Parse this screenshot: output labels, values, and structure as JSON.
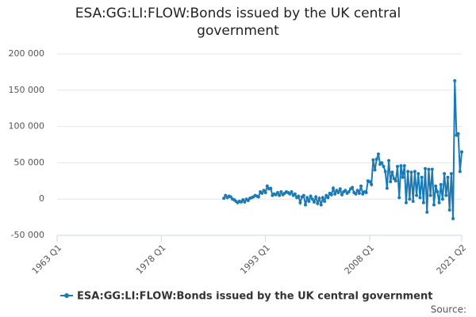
{
  "chart_data": {
    "type": "line",
    "title": "ESA:GG:LI:FLOW:Bonds issued by the UK central government",
    "source": "Source:",
    "x": [
      "1987 Q1",
      "1987 Q2",
      "1987 Q3",
      "1987 Q4",
      "1988 Q1",
      "1988 Q2",
      "1988 Q3",
      "1988 Q4",
      "1989 Q1",
      "1989 Q2",
      "1989 Q3",
      "1989 Q4",
      "1990 Q1",
      "1990 Q2",
      "1990 Q3",
      "1990 Q4",
      "1991 Q1",
      "1991 Q2",
      "1991 Q3",
      "1991 Q4",
      "1992 Q1",
      "1992 Q2",
      "1992 Q3",
      "1992 Q4",
      "1993 Q1",
      "1993 Q2",
      "1993 Q3",
      "1993 Q4",
      "1994 Q1",
      "1994 Q2",
      "1994 Q3",
      "1994 Q4",
      "1995 Q1",
      "1995 Q2",
      "1995 Q3",
      "1995 Q4",
      "1996 Q1",
      "1996 Q2",
      "1996 Q3",
      "1996 Q4",
      "1997 Q1",
      "1997 Q2",
      "1997 Q3",
      "1997 Q4",
      "1998 Q1",
      "1998 Q2",
      "1998 Q3",
      "1998 Q4",
      "1999 Q1",
      "1999 Q2",
      "1999 Q3",
      "1999 Q4",
      "2000 Q1",
      "2000 Q2",
      "2000 Q3",
      "2000 Q4",
      "2001 Q1",
      "2001 Q2",
      "2001 Q3",
      "2001 Q4",
      "2002 Q1",
      "2002 Q2",
      "2002 Q3",
      "2002 Q4",
      "2003 Q1",
      "2003 Q2",
      "2003 Q3",
      "2003 Q4",
      "2004 Q1",
      "2004 Q2",
      "2004 Q3",
      "2004 Q4",
      "2005 Q1",
      "2005 Q2",
      "2005 Q3",
      "2005 Q4",
      "2006 Q1",
      "2006 Q2",
      "2006 Q3",
      "2006 Q4",
      "2007 Q1",
      "2007 Q2",
      "2007 Q3",
      "2007 Q4",
      "2008 Q1",
      "2008 Q2",
      "2008 Q3",
      "2008 Q4",
      "2009 Q1",
      "2009 Q2",
      "2009 Q3",
      "2009 Q4",
      "2010 Q1",
      "2010 Q2",
      "2010 Q3",
      "2010 Q4",
      "2011 Q1",
      "2011 Q2",
      "2011 Q3",
      "2011 Q4",
      "2012 Q1",
      "2012 Q2",
      "2012 Q3",
      "2012 Q4",
      "2013 Q1",
      "2013 Q2",
      "2013 Q3",
      "2013 Q4",
      "2014 Q1",
      "2014 Q2",
      "2014 Q3",
      "2014 Q4",
      "2015 Q1",
      "2015 Q2",
      "2015 Q3",
      "2015 Q4",
      "2016 Q1",
      "2016 Q2",
      "2016 Q3",
      "2016 Q4",
      "2017 Q1",
      "2017 Q2",
      "2017 Q3",
      "2017 Q4",
      "2018 Q1",
      "2018 Q2",
      "2018 Q3",
      "2018 Q4",
      "2019 Q1",
      "2019 Q2",
      "2019 Q3",
      "2019 Q4",
      "2020 Q1",
      "2020 Q2",
      "2020 Q3",
      "2020 Q4",
      "2021 Q1",
      "2021 Q2"
    ],
    "series": [
      {
        "name": "ESA:GG:LI:FLOW:Bonds issued by the UK central government",
        "color": "#1a7ab5",
        "values": [
          1000,
          5000,
          2000,
          4000,
          3000,
          0,
          -1000,
          -3000,
          -5000,
          -3000,
          -4000,
          -1000,
          -4000,
          0,
          -2000,
          1000,
          2000,
          3000,
          5000,
          4000,
          3000,
          10000,
          8000,
          12000,
          9000,
          18000,
          14000,
          15000,
          5000,
          7000,
          6000,
          9000,
          5000,
          10000,
          6000,
          8000,
          10000,
          9000,
          7000,
          10000,
          5000,
          7000,
          2000,
          4000,
          -5000,
          3000,
          5000,
          -8000,
          2000,
          -3000,
          4000,
          0,
          -4000,
          3000,
          -6000,
          1000,
          -8000,
          2000,
          -3000,
          5000,
          2000,
          8000,
          6000,
          15000,
          7000,
          12000,
          9000,
          14000,
          6000,
          10000,
          12000,
          8000,
          10000,
          14000,
          16000,
          9000,
          7000,
          12000,
          8000,
          18000,
          7000,
          10000,
          9000,
          25000,
          24000,
          20000,
          54000,
          40000,
          55000,
          62000,
          48000,
          50000,
          45000,
          38000,
          15000,
          53000,
          24000,
          37000,
          28000,
          25000,
          45000,
          2000,
          46000,
          30000,
          46000,
          -5000,
          38000,
          0,
          37000,
          -3000,
          38000,
          5000,
          35000,
          2000,
          30000,
          -5000,
          42000,
          -18000,
          41000,
          5000,
          41000,
          -8000,
          18000,
          10000,
          -5000,
          20000,
          0,
          35000,
          5000,
          30000,
          -15000,
          35000,
          -27000,
          163000,
          88000,
          90000,
          38000,
          65000
        ]
      }
    ],
    "xlim": [
      "1963 Q1",
      "2021 Q2"
    ],
    "xticks": [
      "1963 Q1",
      "1978 Q1",
      "1993 Q1",
      "2008 Q1",
      "2021 Q2"
    ],
    "ylim": [
      -50000,
      200000
    ],
    "yticks": [
      {
        "value": -50000,
        "label": "-50 000"
      },
      0,
      {
        "value": 50000,
        "label": "50 000"
      },
      {
        "value": 100000,
        "label": "100 000"
      },
      {
        "value": 150000,
        "label": "150 000"
      },
      {
        "value": 200000,
        "label": "200 000"
      }
    ],
    "grid": true
  }
}
